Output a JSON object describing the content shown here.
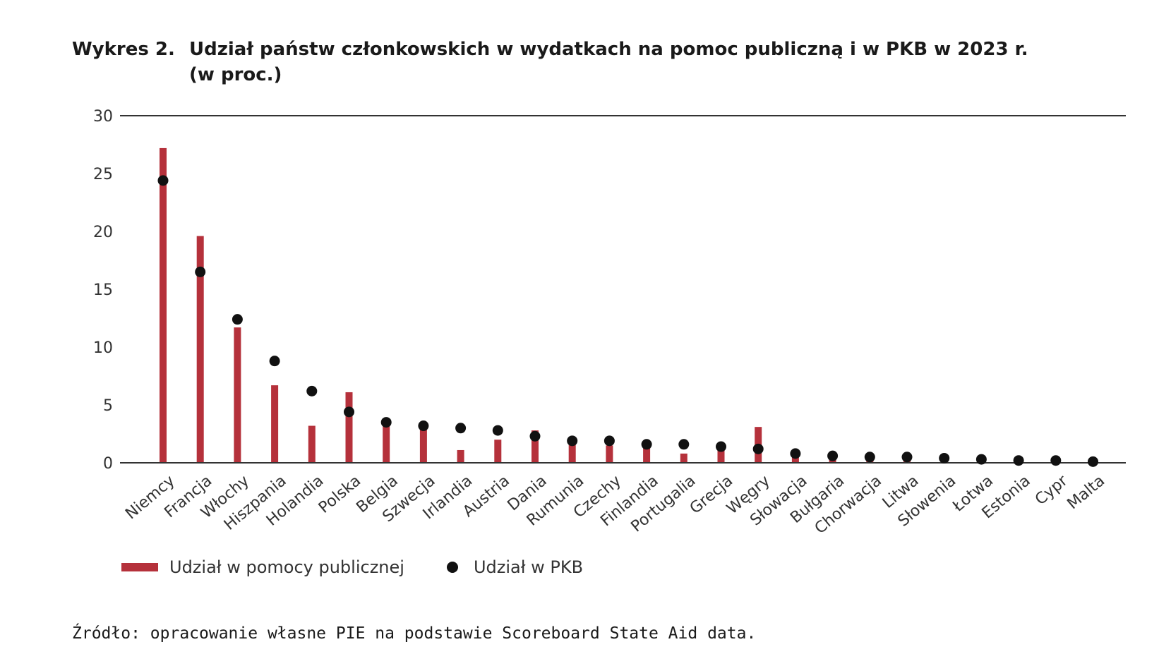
{
  "title": {
    "prefix": "Wykres 2.",
    "line1": "Udział państw członkowskich w wydatkach na pomoc publiczną i w PKB w 2023 r.",
    "line2": "(w proc.)"
  },
  "legend": {
    "bar_label": "Udział w pomocy publicznej",
    "dot_label": "Udział w PKB"
  },
  "source": "Źródło: opracowanie własne PIE na podstawie Scoreboard State Aid data.",
  "colors": {
    "bar": "#b5313b",
    "dot": "#111111",
    "axis": "#333333",
    "text": "#333333"
  },
  "chart_data": {
    "type": "bar",
    "title": "Udział państw członkowskich w wydatkach na pomoc publiczną i w PKB w 2023 r. (w proc.)",
    "ylim": [
      0,
      30
    ],
    "yticks": [
      0,
      5,
      10,
      15,
      20,
      25,
      30
    ],
    "categories": [
      "Niemcy",
      "Francja",
      "Włochy",
      "Hiszpania",
      "Holandia",
      "Polska",
      "Belgia",
      "Szwecja",
      "Irlandia",
      "Austria",
      "Dania",
      "Rumunia",
      "Czechy",
      "Finlandia",
      "Portugalia",
      "Grecja",
      "Węgry",
      "Słowacja",
      "Bułgaria",
      "Chorwacja",
      "Litwa",
      "Słowenia",
      "Łotwa",
      "Estonia",
      "Cypr",
      "Malta"
    ],
    "series": [
      {
        "name": "Udział w pomocy publicznej",
        "kind": "bar",
        "values": [
          27.2,
          19.6,
          11.7,
          6.7,
          3.2,
          6.1,
          3.4,
          3.0,
          1.1,
          2.0,
          2.8,
          1.6,
          1.5,
          1.3,
          0.8,
          1.2,
          3.1,
          0.6,
          0.3,
          0.2,
          0.3,
          0.3,
          0.1,
          0.2,
          0.1,
          0.1
        ]
      },
      {
        "name": "Udział w PKB",
        "kind": "dot",
        "values": [
          24.4,
          16.5,
          12.4,
          8.8,
          6.2,
          4.4,
          3.5,
          3.2,
          3.0,
          2.8,
          2.3,
          1.9,
          1.9,
          1.6,
          1.6,
          1.4,
          1.2,
          0.8,
          0.6,
          0.5,
          0.5,
          0.4,
          0.3,
          0.2,
          0.2,
          0.1
        ]
      }
    ],
    "legend_position": "bottom-left",
    "grid": false
  }
}
